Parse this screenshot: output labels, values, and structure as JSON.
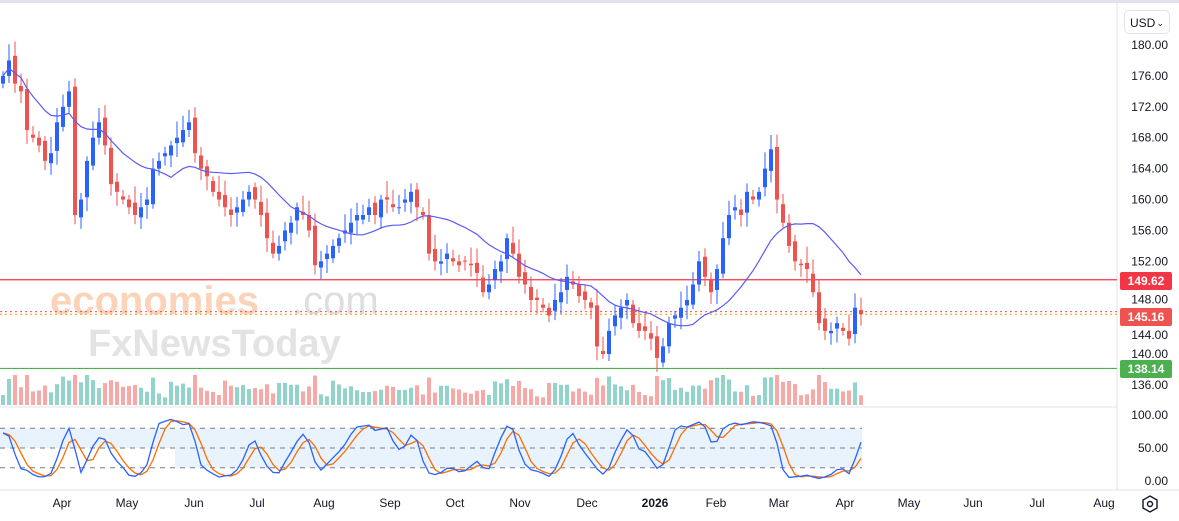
{
  "toolbar": {
    "currency": "USD"
  },
  "price_tags": {
    "resistance": {
      "label": "149.62",
      "color": "#f23645"
    },
    "last": {
      "label": "145.16",
      "color": "#ef5350"
    },
    "support": {
      "label": "138.14",
      "color": "#4caf50"
    }
  },
  "watermark": {
    "line1a": "economies",
    "line1b": ".com",
    "line2": "FxNewsToday"
  },
  "colors": {
    "up": "#2962ff",
    "down": "#ef5350",
    "ma": "#5b5bf5",
    "vol_up": "#92d3cb",
    "vol_down": "#f6a9a6",
    "stoch_k": "#2962ff",
    "stoch_d": "#ff6d00",
    "band": "#e8f3fd"
  },
  "chart_data": {
    "type": "candlestick",
    "title": "",
    "price_axis": {
      "ylim": [
        134,
        182
      ],
      "ticks": [
        "180.00",
        "176.00",
        "172.00",
        "168.00",
        "164.00",
        "160.00",
        "156.00",
        "152.00",
        "148.00",
        "144.00",
        "140.00",
        "136.00"
      ]
    },
    "stoch_axis": {
      "ylim": [
        0,
        100
      ],
      "ticks": [
        "100.00",
        "50.00",
        "0.00"
      ],
      "band": [
        20,
        80
      ]
    },
    "time_axis": {
      "labels": [
        "Apr",
        "May",
        "Jun",
        "Jul",
        "Aug",
        "Sep",
        "Oct",
        "Nov",
        "Dec",
        "2026",
        "Feb",
        "Mar",
        "Apr",
        "May",
        "Jun",
        "Jul",
        "Aug"
      ]
    },
    "ma_period": 17,
    "levels": {
      "resistance": 149.62,
      "last_price": 145.16,
      "prev_close": 145.5,
      "support": 138.14
    },
    "closes": [
      176,
      178,
      175,
      174,
      169,
      168,
      167,
      165,
      166,
      170,
      172,
      174,
      158,
      160,
      165,
      168,
      170,
      167,
      162,
      161,
      160,
      159,
      158,
      159,
      160,
      164,
      165,
      166,
      167,
      168,
      169,
      170,
      166,
      164,
      163,
      161,
      160,
      159,
      158,
      159,
      160,
      161,
      160,
      158,
      155,
      153,
      154,
      156,
      157,
      159,
      158,
      156,
      151.5,
      152,
      153,
      154,
      155,
      156,
      157,
      158,
      158,
      159,
      158,
      160,
      160,
      159,
      159,
      160,
      161,
      159,
      158,
      153,
      152,
      152,
      153,
      152,
      151.5,
      152,
      151.5,
      150.5,
      148,
      149,
      151,
      152,
      155,
      153,
      150,
      149,
      147,
      147,
      146,
      145,
      147,
      148,
      150,
      149,
      147.5,
      147,
      146,
      141,
      140,
      143,
      145,
      146,
      147,
      144,
      143,
      143,
      142,
      139.5,
      141,
      144,
      145,
      146,
      147,
      149,
      152,
      150,
      148,
      151,
      155,
      158,
      159,
      158,
      161,
      160,
      161,
      164,
      166.5,
      160,
      157,
      154,
      152,
      151.5,
      151,
      148,
      144,
      143,
      143,
      144,
      143,
      142,
      146,
      145.16
    ]
  }
}
